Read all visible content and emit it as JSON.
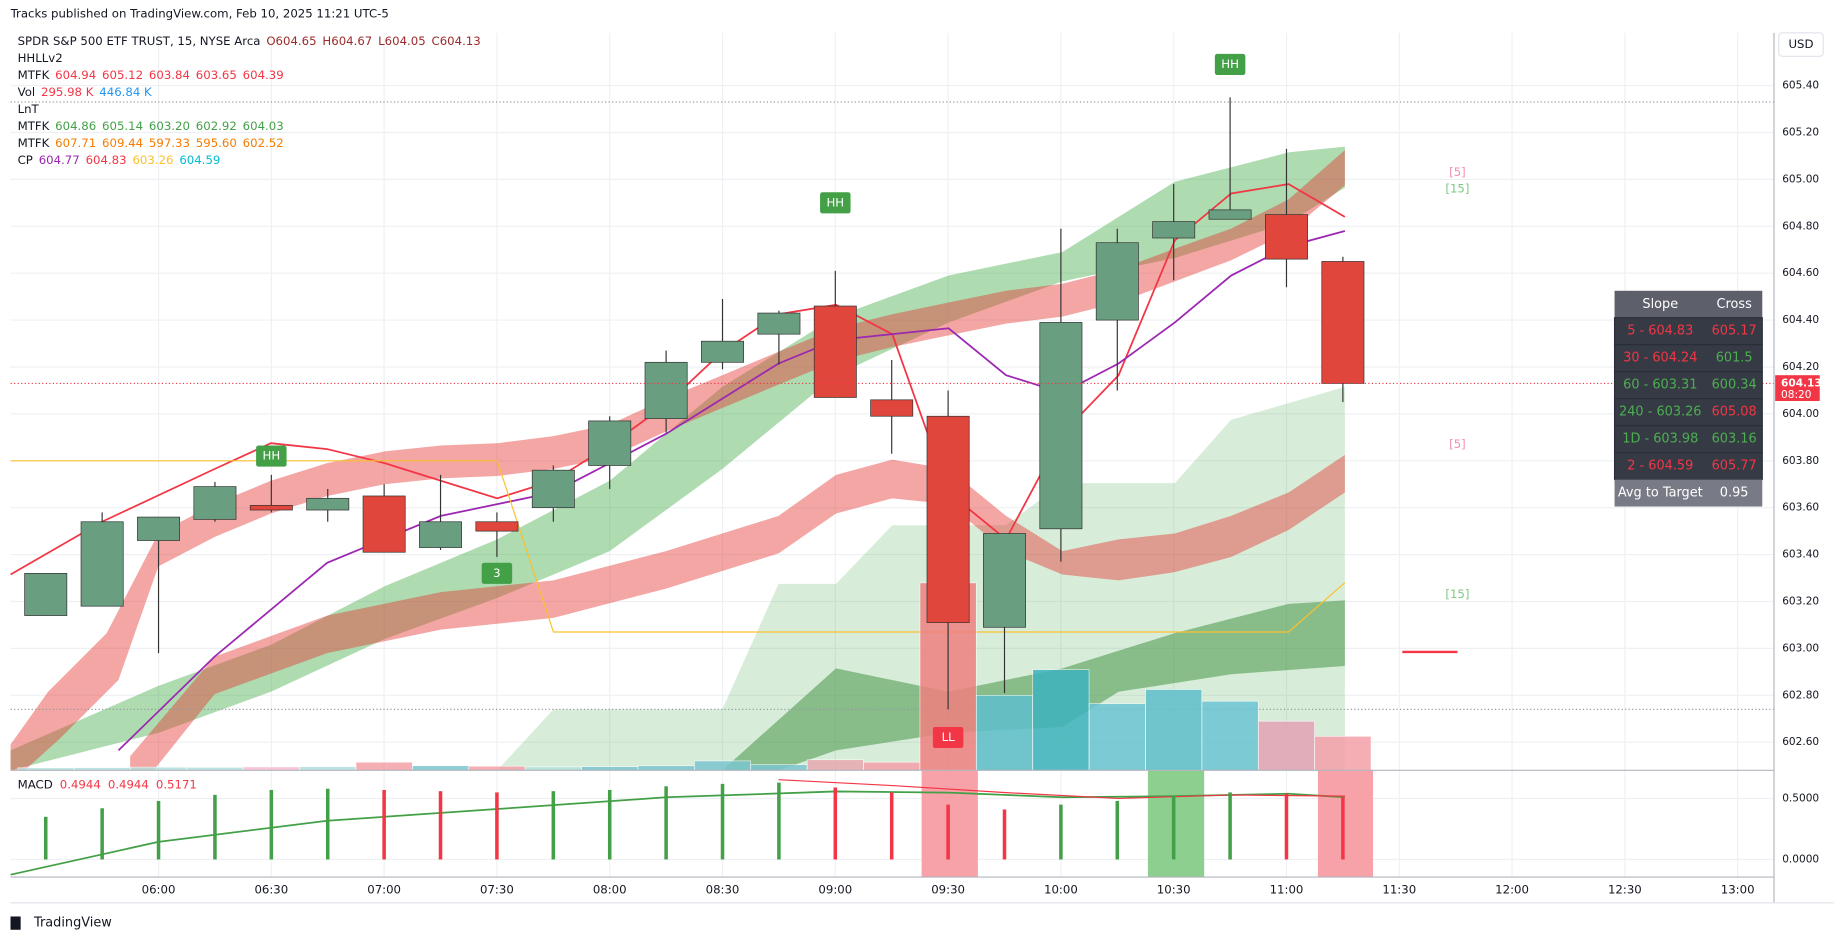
{
  "header": {
    "published": "Tracks published on TradingView.com, Feb 10, 2025 11:21 UTC-5",
    "legend": [
      {
        "name": "SPDR S&P 500 ETF TRUST, 15, NYSE Arca",
        "items": [
          {
            "text": "O604.65",
            "color": "#9c2a2a"
          },
          {
            "text": "H604.67",
            "color": "#9c2a2a"
          },
          {
            "text": "L604.05",
            "color": "#9c2a2a"
          },
          {
            "text": "C604.13",
            "color": "#9c2a2a"
          }
        ]
      },
      {
        "name": "HHLLv2",
        "items": []
      },
      {
        "name": "MTFK",
        "items": [
          {
            "text": "604.94",
            "color": "#f23645"
          },
          {
            "text": "605.12",
            "color": "#f23645"
          },
          {
            "text": "603.84",
            "color": "#f23645"
          },
          {
            "text": "603.65",
            "color": "#f23645"
          },
          {
            "text": "604.39",
            "color": "#f23645"
          }
        ]
      },
      {
        "name": "Vol",
        "items": [
          {
            "text": "295.98 K",
            "color": "#f23645"
          },
          {
            "text": "446.84 K",
            "color": "#2196f3"
          }
        ]
      },
      {
        "name": "LnT",
        "items": []
      },
      {
        "name": "MTFK",
        "items": [
          {
            "text": "604.86",
            "color": "#43a047"
          },
          {
            "text": "605.14",
            "color": "#43a047"
          },
          {
            "text": "603.20",
            "color": "#43a047"
          },
          {
            "text": "602.92",
            "color": "#43a047"
          },
          {
            "text": "604.03",
            "color": "#43a047"
          }
        ]
      },
      {
        "name": "MTFK",
        "items": [
          {
            "text": "607.71",
            "color": "#f57c00"
          },
          {
            "text": "609.44",
            "color": "#f57c00"
          },
          {
            "text": "597.33",
            "color": "#f57c00"
          },
          {
            "text": "595.60",
            "color": "#f57c00"
          },
          {
            "text": "602.52",
            "color": "#f57c00"
          }
        ]
      },
      {
        "name": "CP",
        "items": [
          {
            "text": "604.77",
            "color": "#9c27b0"
          },
          {
            "text": "604.83",
            "color": "#f23645"
          },
          {
            "text": "603.26",
            "color": "#fbc02d"
          },
          {
            "text": "604.59",
            "color": "#00bcd4"
          }
        ]
      }
    ]
  },
  "chart_data": {
    "type": "candlestick",
    "currency": "USD",
    "open": [
      603.14,
      603.18,
      603.46,
      603.55,
      603.61,
      603.59,
      603.65,
      603.43,
      603.54,
      603.6,
      603.78,
      603.98,
      604.22,
      604.34,
      604.46,
      604.06,
      603.99,
      603.09,
      603.51,
      604.4,
      604.75,
      604.83,
      604.85,
      604.65
    ],
    "high": [
      603.32,
      603.58,
      603.56,
      603.71,
      603.74,
      603.68,
      603.7,
      603.74,
      603.58,
      603.78,
      603.99,
      604.27,
      604.49,
      604.44,
      604.61,
      604.23,
      604.1,
      603.49,
      604.79,
      604.79,
      604.98,
      605.35,
      605.13,
      604.67
    ],
    "low": [
      603.14,
      603.18,
      602.98,
      603.54,
      603.58,
      603.54,
      603.41,
      603.42,
      603.39,
      603.54,
      603.68,
      603.92,
      604.19,
      604.21,
      604.07,
      603.83,
      602.74,
      602.81,
      603.37,
      604.1,
      604.57,
      604.83,
      604.54,
      604.05
    ],
    "close": [
      603.32,
      603.54,
      603.56,
      603.69,
      603.59,
      603.64,
      603.41,
      603.54,
      603.5,
      603.76,
      603.97,
      604.22,
      604.31,
      604.43,
      604.07,
      603.99,
      603.11,
      603.49,
      604.39,
      604.73,
      604.82,
      604.87,
      604.66,
      604.13
    ],
    "up_color": "#6a9e80",
    "down_color": "#e0463c",
    "ylim": [
      602.48,
      605.625
    ],
    "yticks": [
      {
        "value": 602.6,
        "label": "602.60"
      },
      {
        "value": 602.8,
        "label": "602.80"
      },
      {
        "value": 603.0,
        "label": "603.00"
      },
      {
        "value": 603.2,
        "label": "603.20"
      },
      {
        "value": 603.4,
        "label": "603.40"
      },
      {
        "value": 603.6,
        "label": "603.60"
      },
      {
        "value": 603.8,
        "label": "603.80"
      },
      {
        "value": 604.0,
        "label": "604.00"
      },
      {
        "value": 604.2,
        "label": "604.20"
      },
      {
        "value": 604.4,
        "label": "604.40"
      },
      {
        "value": 604.6,
        "label": "604.60"
      },
      {
        "value": 604.8,
        "label": "604.80"
      },
      {
        "value": 605.0,
        "label": "605.00"
      },
      {
        "value": 605.2,
        "label": "605.20"
      },
      {
        "value": 605.4,
        "label": "605.40"
      }
    ],
    "last_price": {
      "value": 604.13,
      "label": "604.13",
      "countdown": "08:20",
      "color": "#f23645"
    },
    "xticks": [
      "06:00",
      "06:30",
      "07:00",
      "07:30",
      "08:00",
      "08:30",
      "09:00",
      "09:30",
      "10:00",
      "10:30",
      "11:00",
      "11:30",
      "12:00",
      "12:30",
      "13:00"
    ],
    "grid": true,
    "volume": {
      "values": [
        22,
        24,
        28,
        26,
        30,
        32,
        71,
        40,
        36,
        30,
        32,
        40,
        82,
        50,
        92,
        71,
        1632,
        653,
        877,
        581,
        704,
        602,
        428,
        296
      ],
      "colors": [
        "#b2dfdb",
        "#b2dfdb",
        "#b2dfdb",
        "#b2dfdb",
        "#f8bbd0",
        "#b2dfdb",
        "#f4a0a8",
        "#7cc6d0",
        "#f4a0a8",
        "#b2dfdb",
        "#7cc6d0",
        "#7cc6d0",
        "#7cc6d0",
        "#7cc6d0",
        "#e8a8b0",
        "#f4a0a8",
        "#f08080",
        "#5fbfcc",
        "#3fb3be",
        "#6cc4d4",
        "#5fbfcc",
        "#6cc4d4",
        "#e3a3b5",
        "#f4a0a8"
      ],
      "ylim": [
        0,
        6420
      ]
    },
    "annotations": [
      {
        "text": "HH",
        "index": 4,
        "price": 603.82,
        "color": "#43a047"
      },
      {
        "text": "3",
        "index": 8,
        "price": 603.32,
        "color": "#43a047"
      },
      {
        "text": "HH",
        "index": 14,
        "price": 604.9,
        "color": "#43a047"
      },
      {
        "text": "LL",
        "index": 16,
        "price": 602.62,
        "color": "#f23645"
      },
      {
        "text": "HH",
        "index": 21,
        "price": 605.49,
        "color": "#43a047"
      }
    ],
    "side_labels": [
      {
        "text": "[5]",
        "price": 605.03,
        "color": "#f48fb1"
      },
      {
        "text": "[15]",
        "price": 604.96,
        "color": "#81c784"
      },
      {
        "text": "[5]",
        "price": 603.87,
        "color": "#f48fb1"
      },
      {
        "text": "[15]",
        "price": 603.23,
        "color": "#81c784"
      }
    ],
    "macd": {
      "title": "MACD",
      "readings": [
        {
          "text": "0.4944",
          "color": "#f23645"
        },
        {
          "text": "0.4944",
          "color": "#f23645"
        },
        {
          "text": "0.5171",
          "color": "#f23645"
        }
      ],
      "values": [
        0.35,
        0.42,
        0.48,
        0.53,
        0.57,
        0.58,
        0.57,
        0.56,
        0.55,
        0.56,
        0.57,
        0.6,
        0.62,
        0.63,
        0.59,
        0.55,
        0.45,
        0.41,
        0.45,
        0.48,
        0.52,
        0.55,
        0.54,
        0.51
      ],
      "colors": [
        "#43a047",
        "#43a047",
        "#43a047",
        "#43a047",
        "#43a047",
        "#43a047",
        "#f23645",
        "#f23645",
        "#f23645",
        "#43a047",
        "#43a047",
        "#43a047",
        "#43a047",
        "#43a047",
        "#f23645",
        "#f23645",
        "#f23645",
        "#f23645",
        "#43a047",
        "#43a047",
        "#43a047",
        "#43a047",
        "#f23645",
        "#f23645"
      ],
      "ylim": [
        -0.144,
        0.731
      ],
      "yticks": [
        {
          "value": 0,
          "label": "0.0000"
        },
        {
          "value": 0.5,
          "label": "0.5000"
        }
      ]
    }
  },
  "table": {
    "columns": [
      "Slope",
      "Cross"
    ],
    "rows": [
      [
        {
          "text": "5 - 604.83",
          "color": "#f23645"
        },
        {
          "text": "605.17",
          "color": "#f23645"
        }
      ],
      [
        {
          "text": "30 - 604.24",
          "color": "#f23645"
        },
        {
          "text": "601.5",
          "color": "#4caf50"
        }
      ],
      [
        {
          "text": "60 - 603.31",
          "color": "#4caf50"
        },
        {
          "text": "600.34",
          "color": "#4caf50"
        }
      ],
      [
        {
          "text": "240 - 603.26",
          "color": "#4caf50"
        },
        {
          "text": "605.08",
          "color": "#f23645"
        }
      ],
      [
        {
          "text": "1D - 603.98",
          "color": "#4caf50"
        },
        {
          "text": "603.16",
          "color": "#4caf50"
        }
      ],
      [
        {
          "text": "2 - 604.59",
          "color": "#f23645"
        },
        {
          "text": "605.77",
          "color": "#f23645"
        }
      ]
    ],
    "footer": [
      "Avg to Target",
      "0.95"
    ]
  },
  "footer": {
    "brand": "TradingView"
  }
}
